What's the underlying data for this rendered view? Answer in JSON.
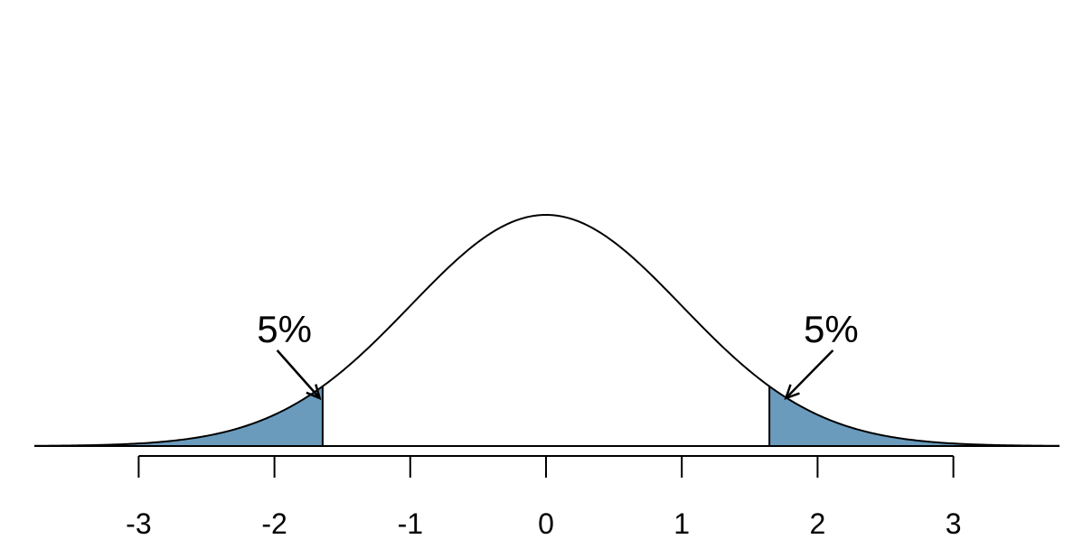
{
  "chart_data": {
    "type": "area",
    "title": "",
    "xlabel": "",
    "ylabel": "",
    "distribution": "standard-normal",
    "xlim": [
      -3.8,
      3.8
    ],
    "x_ticks": [
      -3,
      -2,
      -1,
      0,
      1,
      2,
      3
    ],
    "x_tick_labels": [
      "-3",
      "-2",
      "-1",
      "0",
      "1",
      "2",
      "3"
    ],
    "shaded_regions": [
      {
        "from": -3.8,
        "to": -1.645,
        "area_label": "5%"
      },
      {
        "from": 1.645,
        "to": 3.8,
        "area_label": "5%"
      }
    ],
    "annotations": [
      {
        "text": "5%",
        "arrow_points_to_x": -1.9
      },
      {
        "text": "5%",
        "arrow_points_to_x": 1.9
      }
    ],
    "colors": {
      "curve": "#000000",
      "shade": "#6a9bbd",
      "axis": "#000000"
    }
  }
}
